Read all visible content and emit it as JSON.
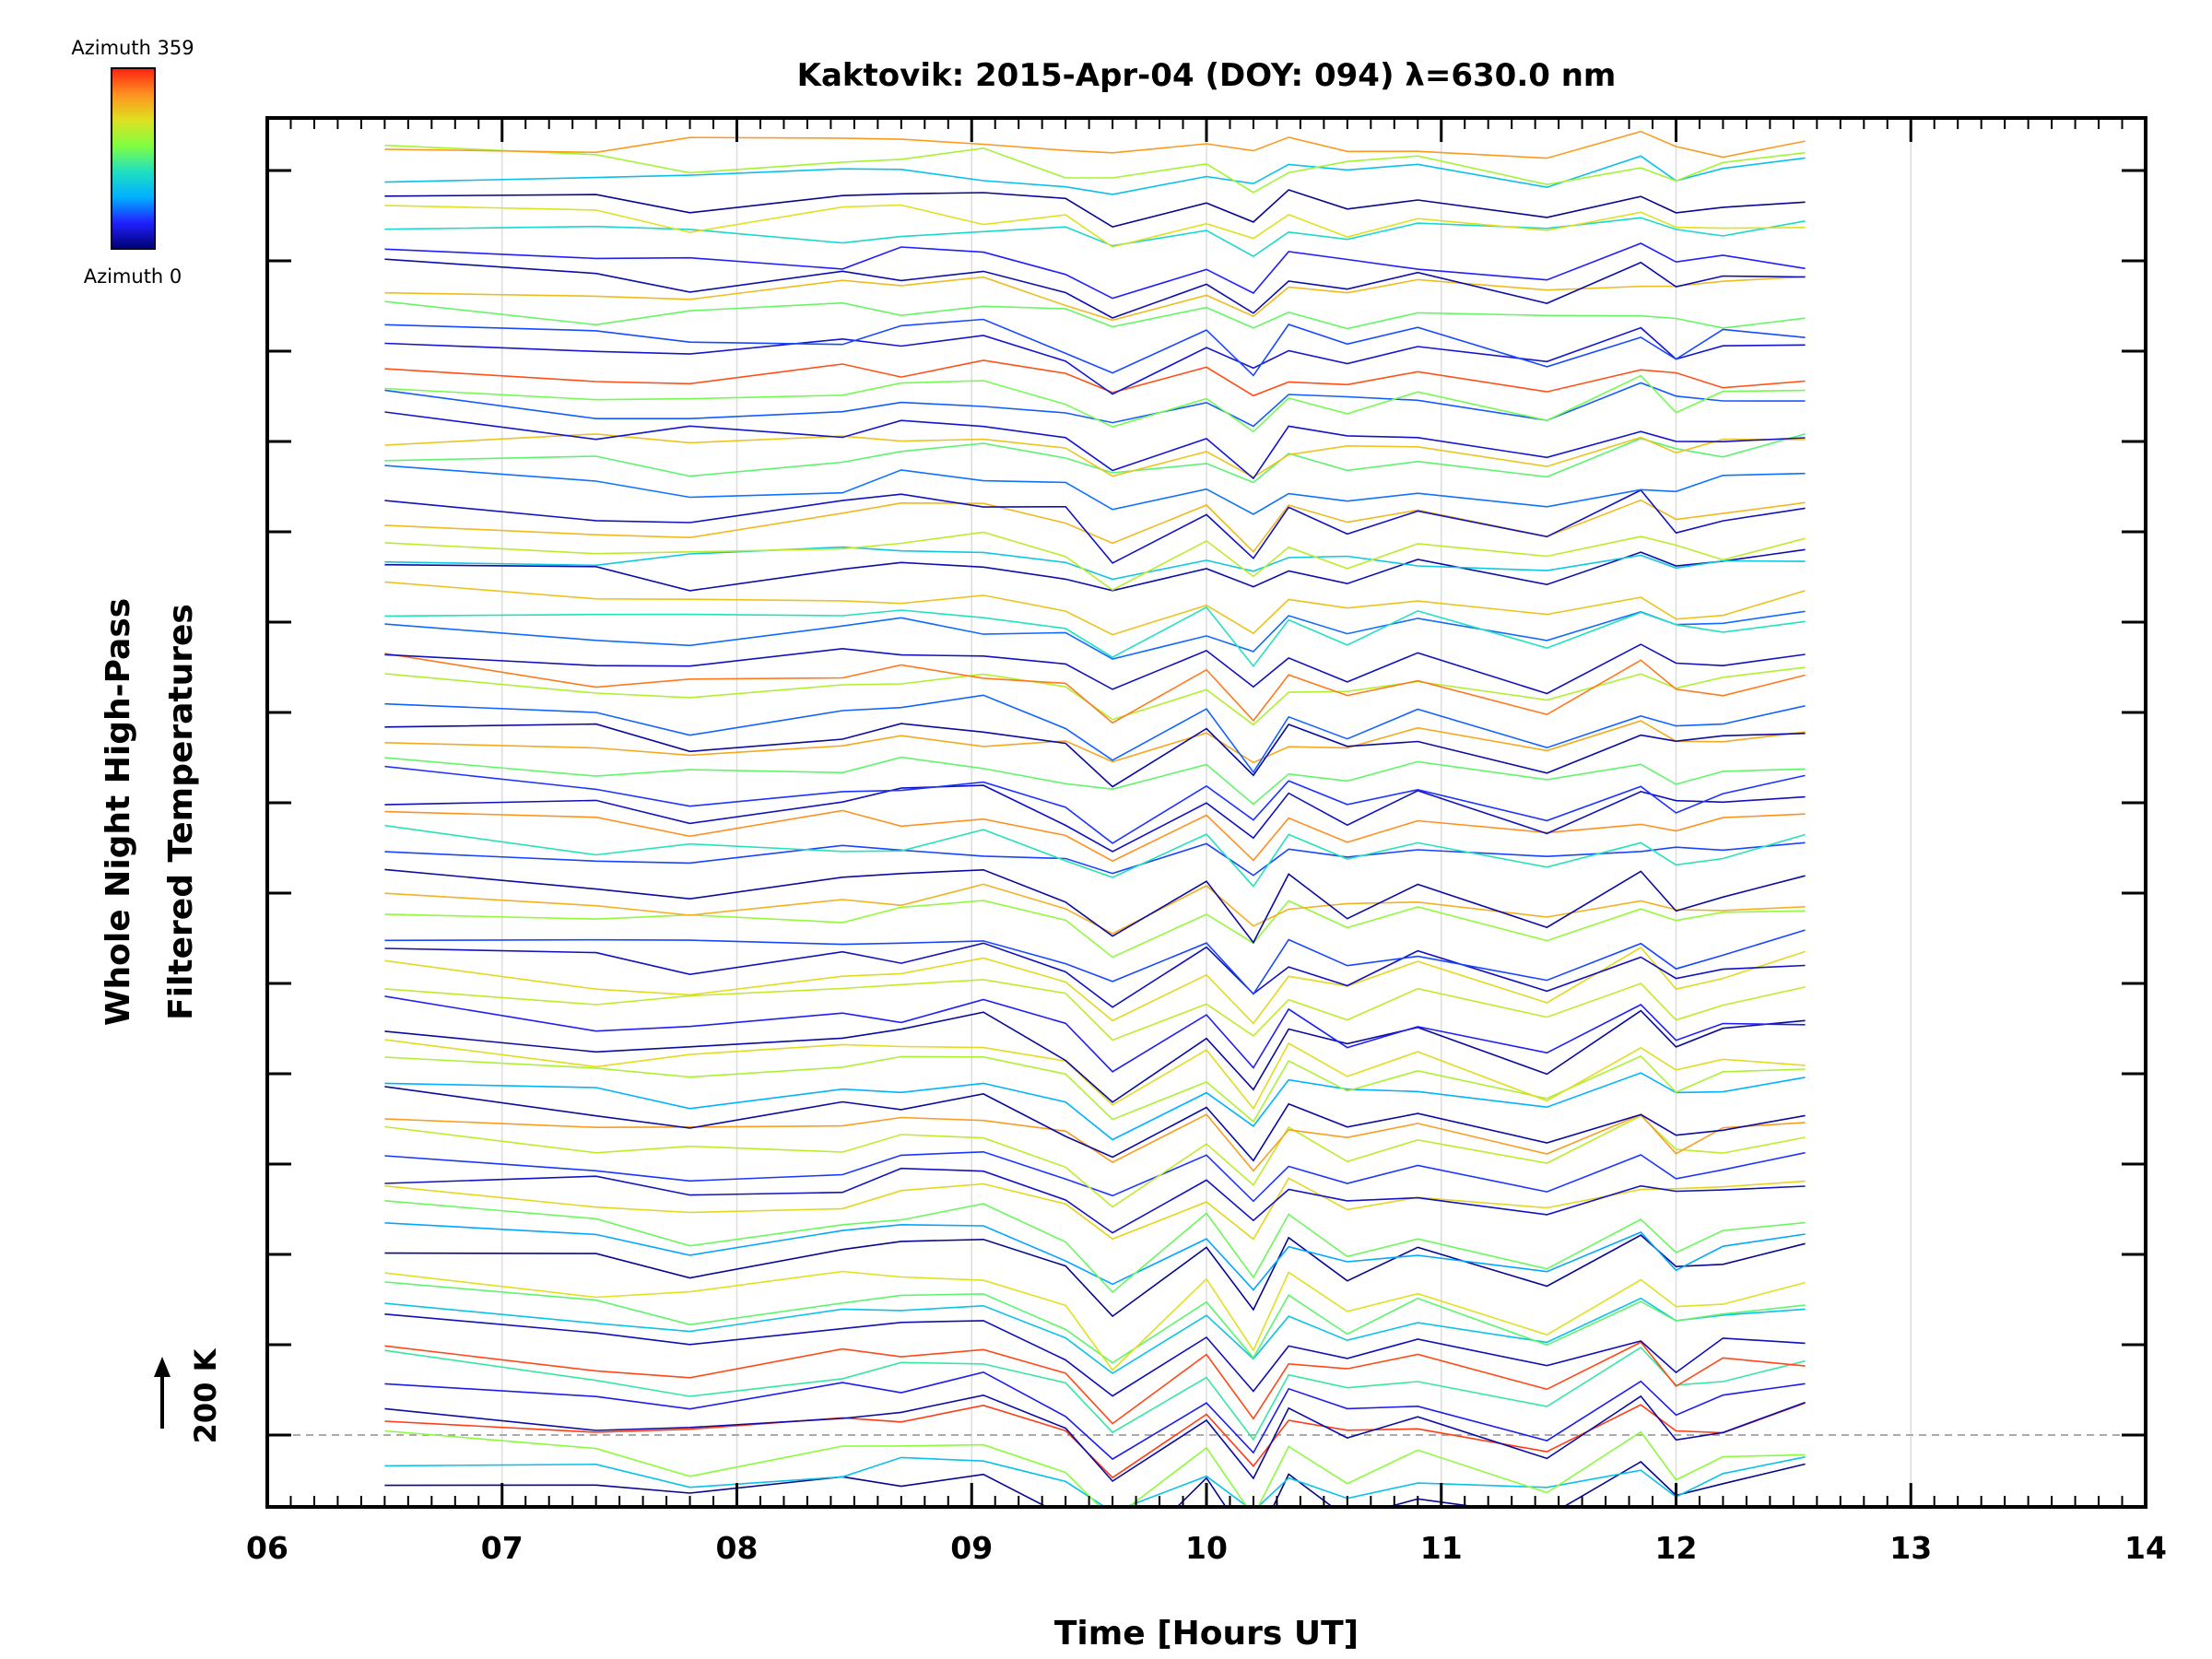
{
  "chart_data": {
    "type": "line",
    "title": "Kaktovik: 2015-Apr-04 (DOY: 094) λ=630.0 nm",
    "xlabel": "Time [Hours UT]",
    "ylabel_line1": "Whole Night High-Pass",
    "ylabel_line2": "Filtered Temperatures",
    "xlim": [
      6,
      14
    ],
    "x_ticks": [
      "06",
      "07",
      "08",
      "09",
      "10",
      "11",
      "12",
      "13",
      "14"
    ],
    "grid": true,
    "scale_bar_label": "200 K",
    "colorbar": {
      "top_label": "Azimuth 359",
      "bottom_label": "Azimuth 0",
      "colormap": [
        "#000070",
        "#2020ff",
        "#00b0ff",
        "#20e0c0",
        "#80ff40",
        "#e0e020",
        "#ff9020",
        "#ff2010"
      ]
    },
    "x": [
      6.5,
      7.4,
      7.8,
      8.45,
      8.7,
      9.05,
      9.4,
      9.6,
      10.0,
      10.2,
      10.35,
      10.6,
      10.9,
      11.45,
      11.85,
      12.0,
      12.2,
      12.55
    ],
    "base_profile": [
      0.0,
      0.07,
      0.1,
      0.05,
      0.03,
      0.01,
      0.12,
      0.3,
      0.05,
      0.28,
      0.05,
      0.15,
      0.08,
      0.2,
      0.02,
      0.15,
      0.1,
      0.05
    ],
    "series_count": 72,
    "legend": "colorbar-top-left"
  }
}
